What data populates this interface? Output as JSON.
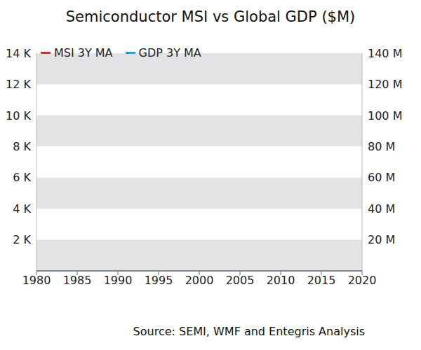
{
  "chart_data": {
    "type": "line",
    "title": "Semiconductor MSI vs Global GDP ($M)",
    "source": "Source: SEMI, WMF and Entegris Analysis",
    "x": [
      1980,
      1985,
      1990,
      1995,
      2000,
      2005,
      2010,
      2015,
      2020
    ],
    "series": [
      {
        "name": "MSI 3Y MA",
        "color": "#d2322d",
        "values": [
          null,
          null,
          null,
          null,
          null,
          null,
          null,
          null,
          null
        ]
      },
      {
        "name": "GDP 3Y MA",
        "color": "#1ba1e2",
        "axis": "y2",
        "values": [
          null,
          null,
          null,
          null,
          null,
          null,
          null,
          null,
          null
        ]
      }
    ],
    "xlim": [
      1980,
      2020
    ],
    "xticks": [
      1980,
      1985,
      1990,
      1995,
      2000,
      2005,
      2010,
      2015,
      2020
    ],
    "ylim": [
      0,
      14000
    ],
    "yticks": [
      {
        "value": 2000,
        "label": "2 K"
      },
      {
        "value": 4000,
        "label": "4 K"
      },
      {
        "value": 6000,
        "label": "6 K"
      },
      {
        "value": 8000,
        "label": "8 K"
      },
      {
        "value": 10000,
        "label": "10 K"
      },
      {
        "value": 12000,
        "label": "12 K"
      },
      {
        "value": 14000,
        "label": "14 K"
      }
    ],
    "y2lim": [
      0,
      140000000
    ],
    "y2ticks": [
      {
        "value": 20000000,
        "label": "20 M"
      },
      {
        "value": 40000000,
        "label": "40 M"
      },
      {
        "value": 60000000,
        "label": "60 M"
      },
      {
        "value": 80000000,
        "label": "80 M"
      },
      {
        "value": 100000000,
        "label": "100 M"
      },
      {
        "value": 120000000,
        "label": "120 M"
      },
      {
        "value": 140000000,
        "label": "140 M"
      }
    ],
    "grid": true,
    "legend": "upper left"
  }
}
